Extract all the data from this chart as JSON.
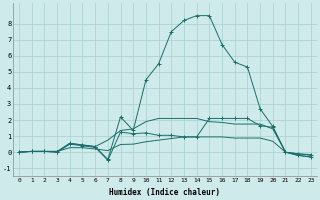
{
  "xlabel": "Humidex (Indice chaleur)",
  "background_color": "#ceeaea",
  "grid_color": "#aacece",
  "line_color": "#1a6e6a",
  "xlim": [
    -0.5,
    23.5
  ],
  "ylim": [
    -1.5,
    9.3
  ],
  "xticks": [
    0,
    1,
    2,
    3,
    4,
    5,
    6,
    7,
    8,
    9,
    10,
    11,
    12,
    13,
    14,
    15,
    16,
    17,
    18,
    19,
    20,
    21,
    22,
    23
  ],
  "yticks": [
    -1,
    0,
    1,
    2,
    3,
    4,
    5,
    6,
    7,
    8
  ],
  "series": [
    {
      "x": [
        0,
        1,
        2,
        3,
        4,
        5,
        6,
        7,
        8,
        9,
        10,
        11,
        12,
        13,
        14,
        15,
        16,
        17,
        18,
        19,
        20,
        21,
        22,
        23
      ],
      "y": [
        0.0,
        0.05,
        0.05,
        0.0,
        0.55,
        0.45,
        0.35,
        -0.45,
        2.2,
        1.35,
        4.5,
        5.5,
        7.5,
        8.2,
        8.5,
        8.5,
        6.7,
        5.6,
        5.3,
        2.7,
        1.6,
        0.0,
        -0.2,
        -0.3
      ],
      "marker": "+"
    },
    {
      "x": [
        0,
        1,
        2,
        3,
        4,
        5,
        6,
        7,
        8,
        9,
        10,
        11,
        12,
        13,
        14,
        15,
        16,
        17,
        18,
        19,
        20,
        21,
        22,
        23
      ],
      "y": [
        0.0,
        0.05,
        0.05,
        0.05,
        0.55,
        0.45,
        0.35,
        0.75,
        1.35,
        1.45,
        1.9,
        2.1,
        2.1,
        2.1,
        2.1,
        1.9,
        1.85,
        1.75,
        1.75,
        1.75,
        1.45,
        0.0,
        -0.2,
        -0.3
      ],
      "marker": null
    },
    {
      "x": [
        0,
        1,
        2,
        3,
        4,
        5,
        6,
        7,
        8,
        9,
        10,
        11,
        12,
        13,
        14,
        15,
        16,
        17,
        18,
        19,
        20,
        21,
        22,
        23
      ],
      "y": [
        0.0,
        0.05,
        0.05,
        0.05,
        0.28,
        0.28,
        0.2,
        0.1,
        0.48,
        0.5,
        0.65,
        0.75,
        0.85,
        0.95,
        0.95,
        0.95,
        0.95,
        0.88,
        0.88,
        0.88,
        0.68,
        0.0,
        -0.1,
        -0.15
      ],
      "marker": null
    },
    {
      "x": [
        0,
        1,
        2,
        3,
        4,
        5,
        6,
        7,
        8,
        9,
        10,
        11,
        12,
        13,
        14,
        15,
        16,
        17,
        18,
        19,
        20,
        21,
        22,
        23
      ],
      "y": [
        0.0,
        0.05,
        0.05,
        0.0,
        0.5,
        0.4,
        0.3,
        -0.5,
        1.25,
        1.15,
        1.2,
        1.05,
        1.05,
        0.95,
        0.95,
        2.1,
        2.1,
        2.1,
        2.1,
        1.65,
        1.55,
        0.0,
        -0.1,
        -0.2
      ],
      "marker": "+"
    }
  ]
}
